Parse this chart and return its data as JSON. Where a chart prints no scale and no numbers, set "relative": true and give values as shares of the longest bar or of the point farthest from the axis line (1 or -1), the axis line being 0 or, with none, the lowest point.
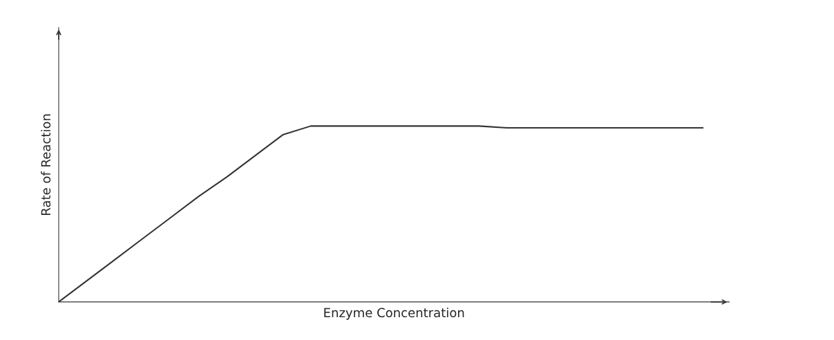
{
  "chart_data": {
    "type": "line",
    "xlabel": "Enzyme Concentration",
    "ylabel": "Rate of Reaction",
    "relative": true,
    "tick_labels": false,
    "categories": [
      null,
      null,
      null,
      null,
      null,
      null,
      null,
      null,
      null,
      null,
      null,
      null,
      null,
      null,
      null,
      null,
      null,
      null,
      null,
      null,
      null,
      null,
      null,
      null
    ],
    "series": [
      {
        "color": "#333333",
        "values": [
          0,
          0.12,
          0.24,
          0.36,
          0.48,
          0.6,
          0.71,
          0.83,
          0.95,
          1.0,
          1.0,
          1.0,
          1.0,
          1.0,
          1.0,
          1.0,
          0.99,
          0.99,
          0.99,
          0.99,
          0.99,
          0.99,
          0.99,
          0.99
        ]
      }
    ],
    "grid": false,
    "legend": false,
    "marker": "none",
    "line_style": "solid"
  }
}
